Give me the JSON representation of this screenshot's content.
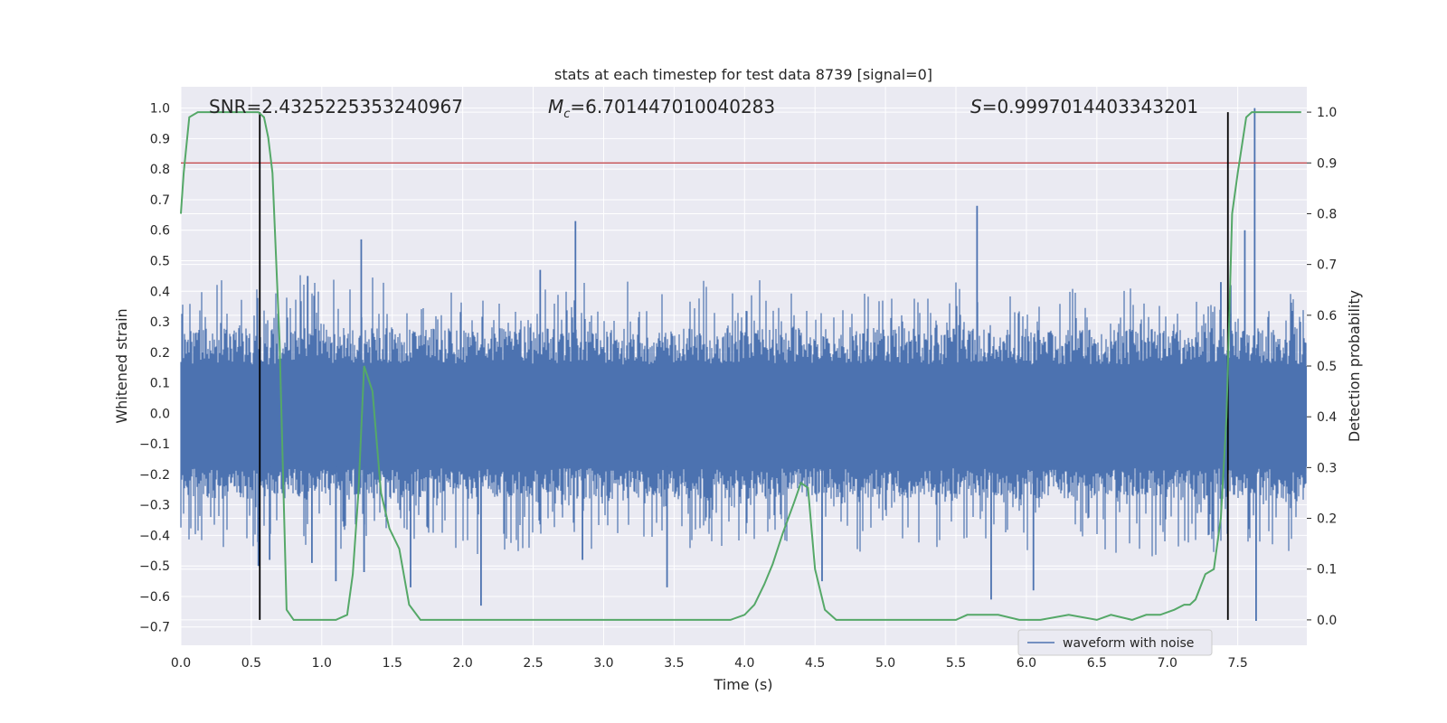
{
  "chart_data": {
    "type": "line",
    "title": "stats at each timestep for test data 8739 [signal=0]",
    "xlabel": "Time (s)",
    "ylabel": "Whitened strain",
    "y2label": "Detection probability",
    "xlim": [
      0.0,
      7.99
    ],
    "ylim": [
      -0.76,
      1.07
    ],
    "y2lim": [
      -0.05,
      1.05
    ],
    "xticks": [
      "0.0",
      "0.5",
      "1.0",
      "1.5",
      "2.0",
      "2.5",
      "3.0",
      "3.5",
      "4.0",
      "4.5",
      "5.0",
      "5.5",
      "6.0",
      "6.5",
      "7.0",
      "7.5"
    ],
    "yticks": [
      "-0.7",
      "-0.6",
      "-0.5",
      "-0.4",
      "-0.3",
      "-0.2",
      "-0.1",
      "0.0",
      "0.1",
      "0.2",
      "0.3",
      "0.4",
      "0.5",
      "0.6",
      "0.7",
      "0.8",
      "0.9",
      "1.0"
    ],
    "y2ticks": [
      "0.0",
      "0.1",
      "0.2",
      "0.3",
      "0.4",
      "0.5",
      "0.6",
      "0.7",
      "0.8",
      "0.9",
      "1.0"
    ],
    "grid": true,
    "legend": {
      "placement": "lower-right",
      "entries": [
        "waveform with noise"
      ]
    },
    "annotations": {
      "snr": "SNR=2.4325225353240967",
      "mc_symbol": "M",
      "mc_sub": "c",
      "mc_value": "=6.701447010040283",
      "s_symbol": "S",
      "s_value": "=0.9997014403343201"
    },
    "threshold_line": {
      "y2": 0.9,
      "color": "#c44e52"
    },
    "vertical_lines": {
      "x": [
        0.56,
        7.43
      ],
      "color": "#000000"
    },
    "series": [
      {
        "name": "waveform with noise",
        "color": "#4c72b0",
        "spikes": [
          {
            "x": 0.55,
            "y": -0.5
          },
          {
            "x": 0.63,
            "y": -0.48
          },
          {
            "x": 0.9,
            "y": 0.45
          },
          {
            "x": 0.93,
            "y": -0.49
          },
          {
            "x": 1.1,
            "y": -0.55
          },
          {
            "x": 1.28,
            "y": 0.57
          },
          {
            "x": 1.3,
            "y": -0.52
          },
          {
            "x": 1.63,
            "y": -0.57
          },
          {
            "x": 2.13,
            "y": -0.63
          },
          {
            "x": 2.55,
            "y": 0.47
          },
          {
            "x": 2.8,
            "y": 0.63
          },
          {
            "x": 2.85,
            "y": -0.48
          },
          {
            "x": 3.45,
            "y": -0.57
          },
          {
            "x": 4.55,
            "y": -0.55
          },
          {
            "x": 5.65,
            "y": 0.68
          },
          {
            "x": 5.75,
            "y": -0.61
          },
          {
            "x": 6.05,
            "y": -0.58
          },
          {
            "x": 7.38,
            "y": 0.43
          },
          {
            "x": 7.45,
            "y": 0.42
          },
          {
            "x": 7.55,
            "y": 0.6
          },
          {
            "x": 7.62,
            "y": 1.0
          },
          {
            "x": 7.63,
            "y": -0.68
          }
        ]
      },
      {
        "name": "detection probability",
        "color": "#55a868",
        "axis": "right",
        "x": [
          0.0,
          0.02,
          0.06,
          0.12,
          0.2,
          0.3,
          0.4,
          0.5,
          0.55,
          0.59,
          0.62,
          0.65,
          0.7,
          0.75,
          0.8,
          0.87,
          0.95,
          1.05,
          1.1,
          1.18,
          1.22,
          1.26,
          1.3,
          1.36,
          1.42,
          1.48,
          1.55,
          1.62,
          1.7,
          1.8,
          2.0,
          2.5,
          2.8,
          3.0,
          3.3,
          3.4,
          3.7,
          3.9,
          4.0,
          4.07,
          4.14,
          4.2,
          4.27,
          4.35,
          4.4,
          4.45,
          4.5,
          4.57,
          4.65,
          4.75,
          4.9,
          5.5,
          5.58,
          5.66,
          5.72,
          5.8,
          5.95,
          6.1,
          6.3,
          6.5,
          6.6,
          6.75,
          6.85,
          6.95,
          7.05,
          7.12,
          7.16,
          7.2,
          7.27,
          7.33,
          7.38,
          7.42,
          7.46,
          7.5,
          7.56,
          7.6,
          7.67,
          7.75,
          7.85,
          7.95
        ],
        "y": [
          0.8,
          0.88,
          0.99,
          1.0,
          1.0,
          1.0,
          1.0,
          1.0,
          1.0,
          0.99,
          0.95,
          0.88,
          0.55,
          0.02,
          0.0,
          0.0,
          0.0,
          0.0,
          0.0,
          0.01,
          0.09,
          0.25,
          0.5,
          0.45,
          0.25,
          0.18,
          0.14,
          0.03,
          0.0,
          0.0,
          0.0,
          0.0,
          0.0,
          0.0,
          0.0,
          0.0,
          0.0,
          0.0,
          0.01,
          0.03,
          0.07,
          0.11,
          0.17,
          0.23,
          0.27,
          0.26,
          0.1,
          0.02,
          0.0,
          0.0,
          0.0,
          0.0,
          0.01,
          0.01,
          0.01,
          0.01,
          0.0,
          0.0,
          0.01,
          0.0,
          0.01,
          0.0,
          0.01,
          0.01,
          0.02,
          0.03,
          0.03,
          0.04,
          0.09,
          0.1,
          0.2,
          0.4,
          0.8,
          0.88,
          0.99,
          1.0,
          1.0,
          1.0,
          1.0,
          1.0
        ]
      }
    ]
  }
}
